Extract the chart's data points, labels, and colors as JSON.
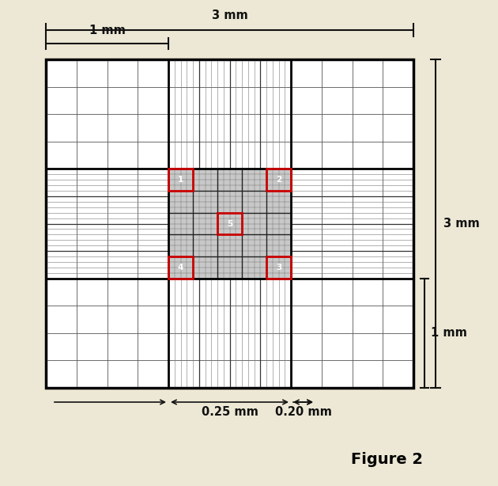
{
  "bg_color": "#ede8d5",
  "grid_bg": "#ffffff",
  "fig_width": 6.3,
  "fig_height": 6.14,
  "title": "Figure 2",
  "title_fontsize": 14,
  "label_3mm_top": "3 mm",
  "label_1mm_top": "1 mm",
  "label_3mm_right": "3 mm",
  "label_1mm_right": "1 mm",
  "label_025mm": "0.25 mm",
  "label_020mm": "0.20 mm",
  "red_box_color": "#cc0000",
  "annotation_color": "#111111"
}
